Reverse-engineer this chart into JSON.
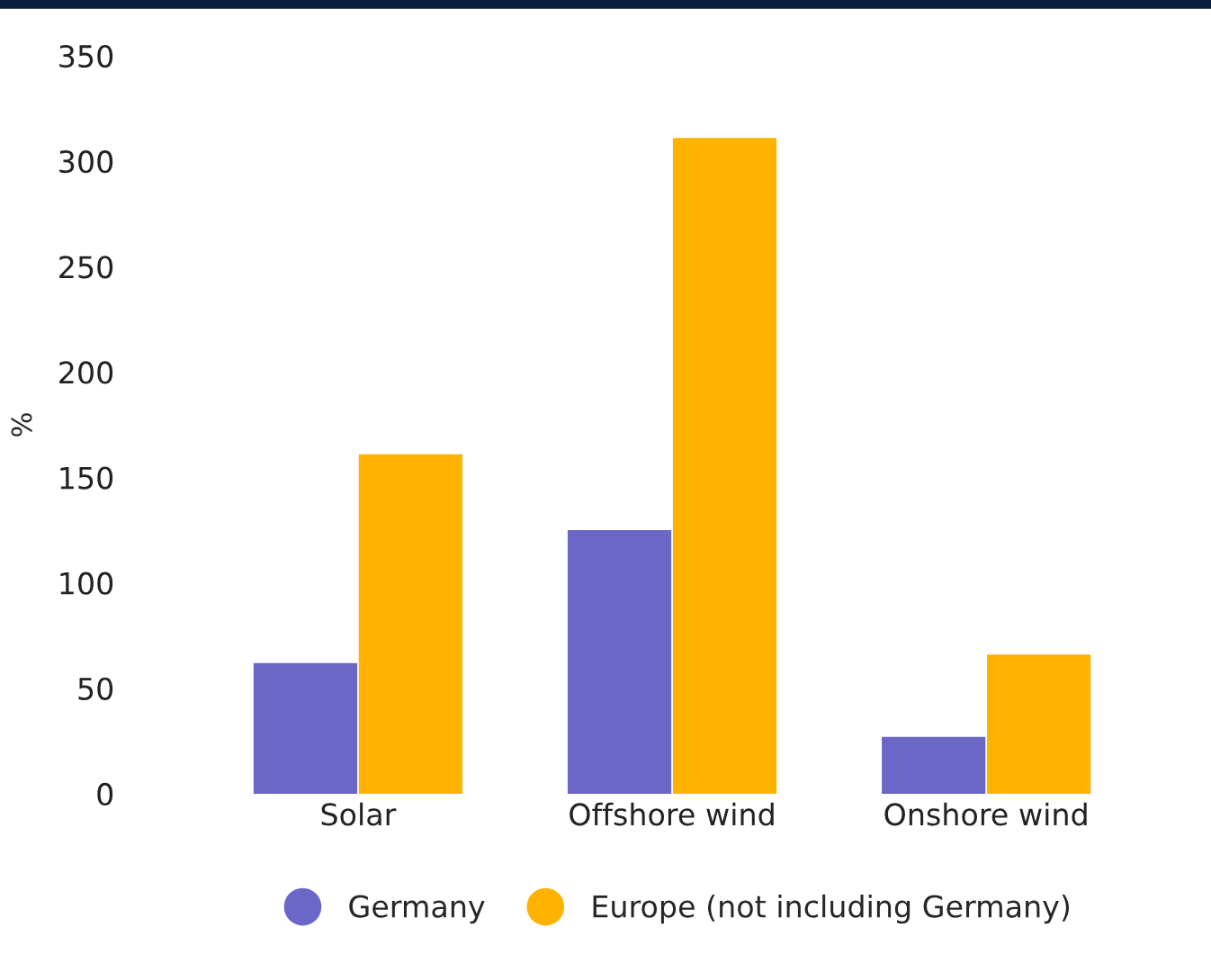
{
  "chart_data": {
    "type": "bar",
    "ylabel": "%",
    "categories": [
      "Solar",
      "Offshore wind",
      "Onshore wind"
    ],
    "series": [
      {
        "name": "Germany",
        "color": "#6b67c7",
        "values": [
          62,
          125,
          27
        ]
      },
      {
        "name": "Europe (not including Germany)",
        "color": "#ffb300",
        "values": [
          161,
          311,
          66
        ]
      }
    ],
    "ylim": [
      0,
      350
    ],
    "yticks": [
      0,
      50,
      100,
      150,
      200,
      250,
      300,
      350
    ],
    "grid": false,
    "legend": "bottom"
  }
}
